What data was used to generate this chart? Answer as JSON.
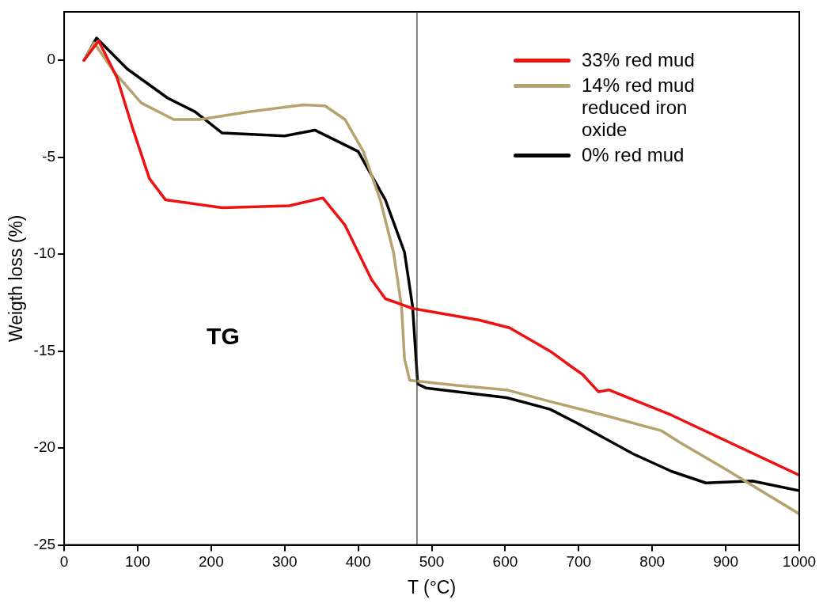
{
  "chart_data": {
    "type": "line",
    "xlabel": "T (°C)",
    "ylabel": "Weigth loss (%)",
    "xlim": [
      0,
      1000
    ],
    "xticks": [
      0,
      100,
      200,
      300,
      400,
      500,
      600,
      700,
      800,
      900,
      1000
    ],
    "ylim": [
      -25,
      2.5
    ],
    "yticks": [
      -25,
      -20,
      -15,
      -10,
      -5,
      0
    ],
    "grid": false,
    "legend": "top right",
    "line_style": "solid",
    "marker": "none",
    "ref_lines": [
      {
        "axis": "x",
        "value": 480,
        "color": "#333333"
      }
    ],
    "annotations": [
      "TG"
    ],
    "series": [
      {
        "name": "33% red mud",
        "color": "#ee1111",
        "x": [
          27,
          47,
          72,
          94,
          116,
          138,
          215,
          306,
          352,
          382,
          418,
          437,
          474,
          565,
          606,
          661,
          690,
          705,
          727,
          741,
          826,
          1000
        ],
        "values": [
          0,
          1.0,
          -0.9,
          -3.6,
          -6.1,
          -7.2,
          -7.6,
          -7.5,
          -7.1,
          -8.5,
          -11.3,
          -12.3,
          -12.8,
          -13.4,
          -13.8,
          -15.0,
          -15.8,
          -16.2,
          -17.1,
          -17.0,
          -18.3,
          -21.4
        ]
      },
      {
        "name": "14% red mud reduced iron oxide",
        "color": "#b5a26e",
        "x": [
          27,
          41,
          68,
          105,
          149,
          185,
          251,
          325,
          355,
          382,
          407,
          430,
          448,
          459,
          463,
          470,
          529,
          602,
          661,
          734,
          812,
          837,
          900,
          1000
        ],
        "values": [
          0,
          0.9,
          -0.6,
          -2.2,
          -3.05,
          -3.05,
          -2.65,
          -2.3,
          -2.35,
          -3.05,
          -4.7,
          -7.2,
          -9.9,
          -12.7,
          -15.4,
          -16.5,
          -16.75,
          -17.0,
          -17.6,
          -18.3,
          -19.1,
          -19.7,
          -21.1,
          -23.4
        ]
      },
      {
        "name": "0% red mud",
        "color": "#000000",
        "x": [
          27,
          44,
          86,
          141,
          178,
          215,
          300,
          341,
          400,
          437,
          463,
          474,
          481,
          492,
          602,
          661,
          697,
          774,
          826,
          873,
          936,
          1000
        ],
        "values": [
          0,
          1.15,
          -0.45,
          -1.95,
          -2.65,
          -3.75,
          -3.9,
          -3.6,
          -4.7,
          -7.2,
          -9.9,
          -12.7,
          -16.7,
          -16.9,
          -17.4,
          -18.0,
          -18.7,
          -20.3,
          -21.2,
          -21.8,
          -21.7,
          -22.2
        ]
      }
    ]
  }
}
